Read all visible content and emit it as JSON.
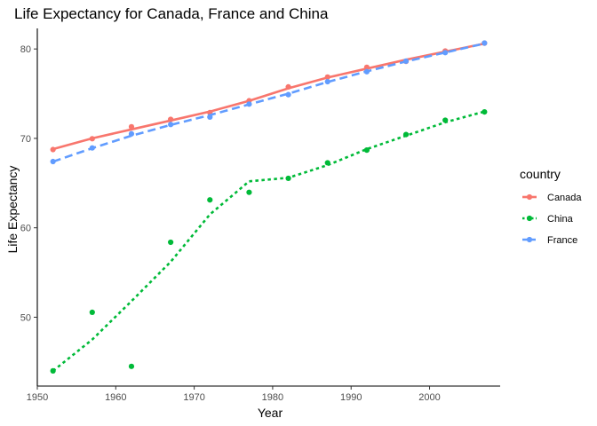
{
  "chart_data": {
    "type": "line",
    "title": "Life Expectancy for Canada, France and China",
    "xlabel": "Year",
    "ylabel": "Life Expectancy",
    "xlim": [
      1950,
      2009
    ],
    "ylim": [
      42.3,
      82.3
    ],
    "x_ticks": [
      1950,
      1960,
      1970,
      1980,
      1990,
      2000
    ],
    "y_ticks": [
      50,
      60,
      70,
      80
    ],
    "grid": false,
    "legend": {
      "title": "country",
      "position": "right"
    },
    "series": [
      {
        "name": "Canada",
        "color": "#F8766D",
        "line_style": "solid",
        "x": [
          1952,
          1957,
          1962,
          1967,
          1972,
          1977,
          1982,
          1987,
          1992,
          1997,
          2002,
          2007
        ],
        "values": [
          68.75,
          69.96,
          71.3,
          72.13,
          72.88,
          74.21,
          75.76,
          76.86,
          77.95,
          78.61,
          79.77,
          80.65
        ],
        "smooth": [
          68.8,
          70.0,
          71.0,
          72.0,
          73.0,
          74.2,
          75.6,
          76.8,
          77.8,
          78.8,
          79.7,
          80.6
        ]
      },
      {
        "name": "China",
        "color": "#00BA38",
        "line_style": "dotted",
        "x": [
          1952,
          1957,
          1962,
          1967,
          1972,
          1977,
          1982,
          1987,
          1992,
          1997,
          2002,
          2007
        ],
        "values": [
          44.0,
          50.55,
          44.5,
          58.38,
          63.12,
          63.97,
          65.53,
          67.27,
          68.69,
          70.43,
          72.03,
          72.96
        ],
        "smooth": [
          44.0,
          47.5,
          51.8,
          56.2,
          61.5,
          65.2,
          65.6,
          67.0,
          68.8,
          70.3,
          71.8,
          73.0
        ]
      },
      {
        "name": "France",
        "color": "#619CFF",
        "line_style": "dashed",
        "x": [
          1952,
          1957,
          1962,
          1967,
          1972,
          1977,
          1982,
          1987,
          1992,
          1997,
          2002,
          2007
        ],
        "values": [
          67.41,
          68.93,
          70.51,
          71.55,
          72.38,
          73.83,
          74.89,
          76.34,
          77.46,
          78.64,
          79.59,
          80.66
        ],
        "smooth": [
          67.4,
          68.9,
          70.3,
          71.5,
          72.6,
          73.8,
          75.0,
          76.3,
          77.5,
          78.6,
          79.6,
          80.6
        ]
      }
    ]
  }
}
